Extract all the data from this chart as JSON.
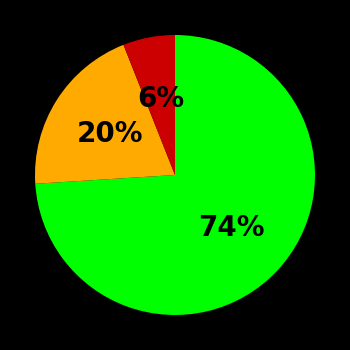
{
  "slices": [
    74,
    20,
    6
  ],
  "colors": [
    "#00ff00",
    "#ffaa00",
    "#cc0000"
  ],
  "labels": [
    "74%",
    "20%",
    "6%"
  ],
  "background_color": "#000000",
  "text_color": "#000000",
  "startangle": 90,
  "label_fontsize": 20,
  "label_fontweight": "bold",
  "label_radii": [
    0.55,
    0.55,
    0.55
  ]
}
